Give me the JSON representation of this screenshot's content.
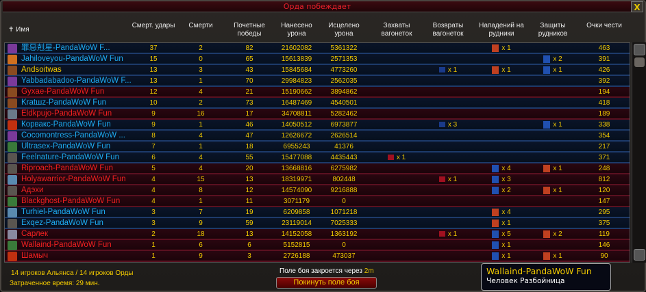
{
  "window": {
    "title": "Орда побеждает",
    "close_label": "X"
  },
  "colors": {
    "alliance": "#1eaaf0",
    "horde": "#f02020",
    "self": "#f0c800"
  },
  "headers": [
    "Имя",
    "Смерт. удары",
    "Смерти",
    "Почетные победы",
    "Нанесено урона",
    "Исцелено урона",
    "Захваты вагонеток",
    "Возвраты вагонеток",
    "Нападений на рудники",
    "Защиты рудников",
    "Очки чести"
  ],
  "rows": [
    {
      "name": "罪惡剋星-PandaWoW F...",
      "f": "a",
      "icon": "warlock",
      "kb": "37",
      "d": "2",
      "hk": "82",
      "dmg": "21602082",
      "heal": "5361322",
      "cap": "",
      "ret": "",
      "asl": {
        "icon": "horde-mine-assault",
        "t": "x 1"
      },
      "def": "",
      "honor": "463"
    },
    {
      "name": "Jahiloveyou-PandaWoW Fun",
      "f": "a",
      "icon": "mage",
      "kb": "15",
      "d": "0",
      "hk": "65",
      "dmg": "15613839",
      "heal": "2571353",
      "cap": "",
      "ret": "",
      "asl": "",
      "def": {
        "icon": "alliance-mine-defend",
        "t": "x 2"
      },
      "honor": "391"
    },
    {
      "name": "Andsoitwas",
      "f": "s",
      "icon": "hunter",
      "kb": "13",
      "d": "3",
      "hk": "43",
      "dmg": "15845684",
      "heal": "4773260",
      "cap": "",
      "ret": {
        "icon": "alliance-flag",
        "t": "x 1"
      },
      "asl": {
        "icon": "horde-mine-assault",
        "t": "x 1"
      },
      "def": {
        "icon": "alliance-mine-defend",
        "t": "x 1"
      },
      "honor": "426"
    },
    {
      "name": "Yabbadabadoo-PandaWoW F...",
      "f": "a",
      "icon": "warlock",
      "kb": "13",
      "d": "1",
      "hk": "70",
      "dmg": "29984823",
      "heal": "2562035",
      "cap": "",
      "ret": "",
      "asl": "",
      "def": "",
      "honor": "392"
    },
    {
      "name": "Gyxae-PandaWoW Fun",
      "f": "h",
      "icon": "hunter",
      "kb": "12",
      "d": "4",
      "hk": "21",
      "dmg": "15190662",
      "heal": "3894862",
      "cap": "",
      "ret": "",
      "asl": "",
      "def": "",
      "honor": "194"
    },
    {
      "name": "Kratшz-PandaWoW Fun",
      "f": "a",
      "icon": "hunter",
      "kb": "10",
      "d": "2",
      "hk": "73",
      "dmg": "16487469",
      "heal": "4540501",
      "cap": "",
      "ret": "",
      "asl": "",
      "def": "",
      "honor": "418"
    },
    {
      "name": "Eldkpujo-PandaWoW Fun",
      "f": "h",
      "icon": "death-knight",
      "kb": "9",
      "d": "16",
      "hk": "17",
      "dmg": "34708811",
      "heal": "5282462",
      "cap": "",
      "ret": "",
      "asl": "",
      "def": "",
      "honor": "189"
    },
    {
      "name": "Корвакс-PandaWoW Fun",
      "f": "a",
      "icon": "shaman",
      "kb": "9",
      "d": "1",
      "hk": "46",
      "dmg": "14050512",
      "heal": "6973877",
      "cap": "",
      "ret": {
        "icon": "alliance-flag",
        "t": "x 3"
      },
      "asl": "",
      "def": {
        "icon": "alliance-mine-defend",
        "t": "x 1"
      },
      "honor": "338"
    },
    {
      "name": "Cocomontress-PandaWoW ...",
      "f": "a",
      "icon": "warlock",
      "kb": "8",
      "d": "4",
      "hk": "47",
      "dmg": "12626672",
      "heal": "2626514",
      "cap": "",
      "ret": "",
      "asl": "",
      "def": "",
      "honor": "354"
    },
    {
      "name": "Ultrasex-PandaWoW Fun",
      "f": "a",
      "icon": "rogue",
      "kb": "7",
      "d": "1",
      "hk": "18",
      "dmg": "6955243",
      "heal": "41376",
      "cap": "",
      "ret": "",
      "asl": "",
      "def": "",
      "honor": "217"
    },
    {
      "name": "Feelnature-PandaWoW Fun",
      "f": "a",
      "icon": "druid",
      "kb": "6",
      "d": "4",
      "hk": "55",
      "dmg": "15477088",
      "heal": "4435443",
      "cap": {
        "icon": "horde-flag",
        "t": "x 1"
      },
      "ret": "",
      "asl": "",
      "def": "",
      "honor": "371"
    },
    {
      "name": "Riproach-PandaWoW Fun",
      "f": "h",
      "icon": "druid",
      "kb": "5",
      "d": "4",
      "hk": "20",
      "dmg": "13668816",
      "heal": "6275982",
      "cap": "",
      "ret": "",
      "asl": {
        "icon": "alliance-mine-assault",
        "t": "x 4"
      },
      "def": {
        "icon": "horde-mine-defend",
        "t": "x 1"
      },
      "honor": "248"
    },
    {
      "name": "Holyawarrior-PandaWoW Fun",
      "f": "h",
      "icon": "warrior",
      "kb": "4",
      "d": "15",
      "hk": "13",
      "dmg": "18319971",
      "heal": "802448",
      "cap": "",
      "ret": {
        "icon": "horde-flag",
        "t": "x 1"
      },
      "asl": {
        "icon": "alliance-mine-assault",
        "t": "x 3"
      },
      "def": "",
      "honor": "812"
    },
    {
      "name": "Адэхи",
      "f": "h",
      "icon": "druid",
      "kb": "4",
      "d": "8",
      "hk": "12",
      "dmg": "14574090",
      "heal": "9216888",
      "cap": "",
      "ret": "",
      "asl": {
        "icon": "alliance-mine-assault",
        "t": "x 2"
      },
      "def": {
        "icon": "horde-mine-defend",
        "t": "x 1"
      },
      "honor": "120"
    },
    {
      "name": "Blackghost-PandaWoW Fun",
      "f": "h",
      "icon": "rogue",
      "kb": "4",
      "d": "1",
      "hk": "11",
      "dmg": "3071179",
      "heal": "0",
      "cap": "",
      "ret": "",
      "asl": "",
      "def": "",
      "honor": "147"
    },
    {
      "name": "Turhiel-PandaWoW Fun",
      "f": "a",
      "icon": "warrior",
      "kb": "3",
      "d": "7",
      "hk": "19",
      "dmg": "6209858",
      "heal": "1071218",
      "cap": "",
      "ret": "",
      "asl": {
        "icon": "horde-mine-assault",
        "t": "x 4"
      },
      "def": "",
      "honor": "295"
    },
    {
      "name": "Exqez-PandaWoW Fun",
      "f": "a",
      "icon": "druid",
      "kb": "3",
      "d": "9",
      "hk": "59",
      "dmg": "23119014",
      "heal": "7025333",
      "cap": "",
      "ret": "",
      "asl": {
        "icon": "horde-mine-assault",
        "t": "x 1"
      },
      "def": "",
      "honor": "375"
    },
    {
      "name": "Сарлек",
      "f": "h",
      "icon": "priest",
      "kb": "2",
      "d": "18",
      "hk": "13",
      "dmg": "14152058",
      "heal": "1363192",
      "cap": "",
      "ret": {
        "icon": "horde-flag",
        "t": "x 1"
      },
      "asl": {
        "icon": "alliance-mine-assault",
        "t": "x 5"
      },
      "def": {
        "icon": "horde-mine-defend",
        "t": "x 2"
      },
      "honor": "119"
    },
    {
      "name": "Wallaind-PandaWoW Fun",
      "f": "h",
      "icon": "rogue",
      "kb": "1",
      "d": "6",
      "hk": "6",
      "dmg": "5152815",
      "heal": "0",
      "cap": "",
      "ret": "",
      "asl": {
        "icon": "alliance-mine-assault",
        "t": "x 1"
      },
      "def": "",
      "honor": "146"
    },
    {
      "name": "Шамыч",
      "f": "h",
      "icon": "shaman",
      "kb": "1",
      "d": "9",
      "hk": "3",
      "dmg": "2726188",
      "heal": "473037",
      "cap": "",
      "ret": "",
      "asl": {
        "icon": "alliance-mine-assault",
        "t": "x 1"
      },
      "def": {
        "icon": "horde-mine-defend",
        "t": "x 1"
      },
      "honor": "90"
    }
  ],
  "tooltip": {
    "name": "Wallaind-PandaWoW Fun",
    "info": "Человек Разбойница"
  },
  "footer": {
    "players": "14 игроков Альянса / 14 игроков Орды",
    "elapsed": "Затраченное время: 29 мин.",
    "closing": "Поле боя закроется через",
    "closing_time": "2m",
    "leave": "Покинуть поле боя"
  }
}
